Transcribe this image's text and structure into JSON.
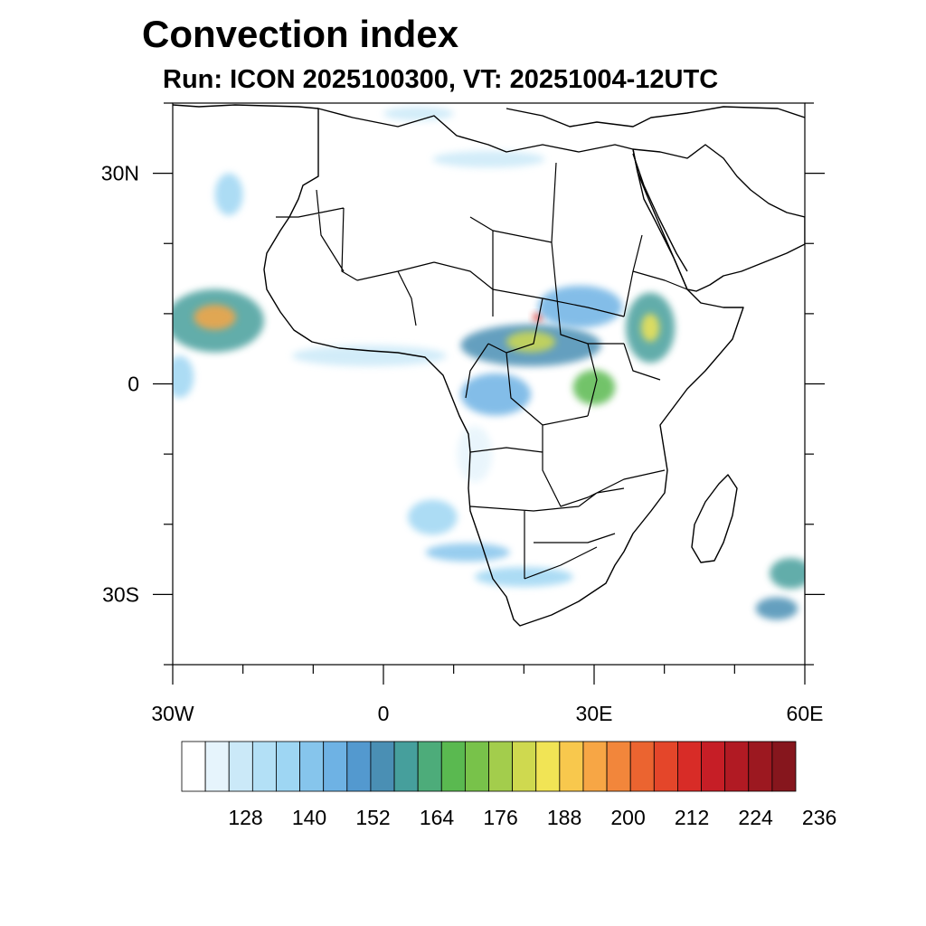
{
  "title": "Convection index",
  "subtitle": "Run: ICON 2025100300,  VT: 20251004-12UTC",
  "map": {
    "lon_range": [
      -30,
      60
    ],
    "lat_range": [
      -40,
      40
    ],
    "x_ticks": [
      {
        "value": -30,
        "label": "30W"
      },
      {
        "value": 0,
        "label": "0"
      },
      {
        "value": 30,
        "label": "30E"
      },
      {
        "value": 60,
        "label": "60E"
      }
    ],
    "y_ticks": [
      {
        "value": 30,
        "label": "30N"
      },
      {
        "value": 0,
        "label": "0"
      },
      {
        "value": -30,
        "label": "30S"
      }
    ],
    "x_minor_step": 10,
    "y_minor_step": 10
  },
  "colorbar": {
    "colors": [
      "#ffffff",
      "#e6f4fc",
      "#cbe9f8",
      "#b3e0f6",
      "#9ed6f3",
      "#86c5ec",
      "#6eb2e4",
      "#5399cf",
      "#4a8fb4",
      "#469f9c",
      "#4dac7a",
      "#5ab950",
      "#78c24a",
      "#a3cd4c",
      "#cfd94f",
      "#f1e455",
      "#f8c84d",
      "#f7a645",
      "#f2863b",
      "#eb6430",
      "#e4462a",
      "#d82c27",
      "#c61e26",
      "#b11a23",
      "#9c1820",
      "#86161d"
    ],
    "labels": [
      {
        "slot": 2,
        "text": "128"
      },
      {
        "slot": 5,
        "text": "140"
      },
      {
        "slot": 8,
        "text": "152"
      },
      {
        "slot": 11,
        "text": "164"
      },
      {
        "slot": 14,
        "text": "176"
      },
      {
        "slot": 17,
        "text": "188"
      },
      {
        "slot": 20,
        "text": "200"
      },
      {
        "slot": 23,
        "text": "212"
      },
      {
        "slot": 26,
        "text": "224"
      },
      {
        "slot": 29,
        "text": "236"
      }
    ]
  },
  "convection_cells": [
    {
      "name": "atlantic-itcz",
      "lon": -24,
      "lat": 9,
      "rx": 7,
      "ry": 4.5,
      "level": 9
    },
    {
      "name": "atlantic-itcz-core",
      "lon": -24,
      "lat": 9.5,
      "rx": 3,
      "ry": 1.8,
      "level": 17
    },
    {
      "name": "atlantic-west-edge",
      "lon": -29,
      "lat": 1,
      "rx": 2,
      "ry": 3,
      "level": 4
    },
    {
      "name": "gulf-guinea-band",
      "lon": -2,
      "lat": 4,
      "rx": 11,
      "ry": 1.5,
      "level": 2
    },
    {
      "name": "central-africa",
      "lon": 21,
      "lat": 5.5,
      "rx": 10,
      "ry": 3,
      "level": 8
    },
    {
      "name": "central-africa-core",
      "lon": 21,
      "lat": 6,
      "rx": 3.5,
      "ry": 1.5,
      "level": 14
    },
    {
      "name": "car-hotspot",
      "lon": 22,
      "lat": 9.5,
      "rx": 0.7,
      "ry": 0.6,
      "level": 21
    },
    {
      "name": "sudan-band",
      "lon": 28,
      "lat": 11,
      "rx": 6,
      "ry": 3,
      "level": 6
    },
    {
      "name": "congo-basin",
      "lon": 16,
      "lat": -1.5,
      "rx": 5,
      "ry": 3,
      "level": 6
    },
    {
      "name": "lake-victoria",
      "lon": 30,
      "lat": -0.5,
      "rx": 3,
      "ry": 2.5,
      "level": 11
    },
    {
      "name": "ethiopia",
      "lon": 38,
      "lat": 8,
      "rx": 3.5,
      "ry": 5,
      "level": 9
    },
    {
      "name": "ethiopia-core",
      "lon": 38,
      "lat": 8,
      "rx": 1.3,
      "ry": 2,
      "level": 15
    },
    {
      "name": "angola-coast",
      "lon": 13,
      "lat": -10,
      "rx": 2.5,
      "ry": 4,
      "level": 1
    },
    {
      "name": "south-atlantic-front",
      "lon": 7,
      "lat": -19,
      "rx": 3.5,
      "ry": 2.5,
      "level": 4
    },
    {
      "name": "cape-front",
      "lon": 12,
      "lat": -24,
      "rx": 6,
      "ry": 1.3,
      "level": 5
    },
    {
      "name": "south-africa-band",
      "lon": 20,
      "lat": -27.5,
      "rx": 7,
      "ry": 1.4,
      "level": 4
    },
    {
      "name": "indian-ocean-front",
      "lon": 58,
      "lat": -27,
      "rx": 3,
      "ry": 2.2,
      "level": 9
    },
    {
      "name": "indian-ocean-front-2",
      "lon": 56,
      "lat": -32,
      "rx": 3,
      "ry": 1.6,
      "level": 8
    },
    {
      "name": "canary-streak",
      "lon": -22,
      "lat": 27,
      "rx": 2,
      "ry": 3,
      "level": 4
    },
    {
      "name": "sahara-streak",
      "lon": 15,
      "lat": 32,
      "rx": 8,
      "ry": 1.2,
      "level": 2
    },
    {
      "name": "med-streak",
      "lon": 5,
      "lat": 38.5,
      "rx": 5,
      "ry": 1,
      "level": 2
    }
  ]
}
